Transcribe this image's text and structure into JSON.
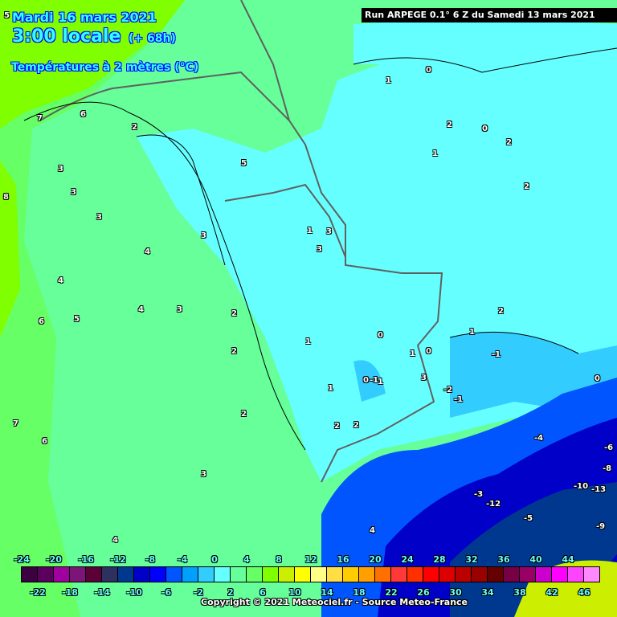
{
  "header": {
    "date": "Mardi 16 mars 2021",
    "time": "3:00 locale",
    "lead": "(+ 68h)",
    "variable": "Températures à 2 mètres (°C)"
  },
  "run_info": "Run ARPEGE 0.1° 6 Z du Samedi 13 mars 2021",
  "copyright": "Copyright © 2021 Meteociel.fr - Source Meteo-France",
  "legend": {
    "top_labels": [
      "-24",
      "-20",
      "-16",
      "-12",
      "-8",
      "-4",
      "0",
      "4",
      "8",
      "12",
      "16",
      "20",
      "24",
      "28",
      "32",
      "36",
      "40",
      "44"
    ],
    "bottom_labels": [
      "-22",
      "-18",
      "-14",
      "-10",
      "-6",
      "-2",
      "2",
      "6",
      "10",
      "14",
      "18",
      "22",
      "26",
      "30",
      "34",
      "38",
      "42",
      "46"
    ],
    "colors": [
      "#3d0040",
      "#5c005e",
      "#a000a0",
      "#7d1478",
      "#5c0038",
      "#2e3060",
      "#003890",
      "#0000c8",
      "#0000ff",
      "#0055ff",
      "#00a0ff",
      "#33ccff",
      "#66ffff",
      "#66ff99",
      "#66ff66",
      "#80ff00",
      "#ccee00",
      "#ffff00",
      "#ffff88",
      "#ffdd44",
      "#ffcc00",
      "#ffa000",
      "#ff7000",
      "#ff3838",
      "#ff3000",
      "#ff0000",
      "#dd0000",
      "#bb0000",
      "#990000",
      "#660000",
      "#770044",
      "#990066",
      "#cc00cc",
      "#ff00ff",
      "#ff44ff",
      "#ff88ff"
    ]
  },
  "map_labels": [
    "5",
    "6",
    "7",
    "8",
    "2",
    "3",
    "3",
    "3",
    "3",
    "4",
    "4",
    "4",
    "5",
    "5",
    "6",
    "7",
    "3",
    "3",
    "2",
    "2",
    "2",
    "1",
    "1",
    "1",
    "0",
    "0",
    "-1",
    "1",
    "2",
    "2",
    "1",
    "0",
    "0",
    "1",
    "2",
    "2",
    "2",
    "1",
    "0",
    "-1",
    "-2",
    "-1",
    "0",
    "1",
    "3",
    "3",
    "3",
    "-4",
    "-6",
    "-8",
    "-10",
    "-12",
    "-13",
    "-5",
    "-9",
    "-3",
    "4",
    "4",
    "2",
    "6"
  ]
}
